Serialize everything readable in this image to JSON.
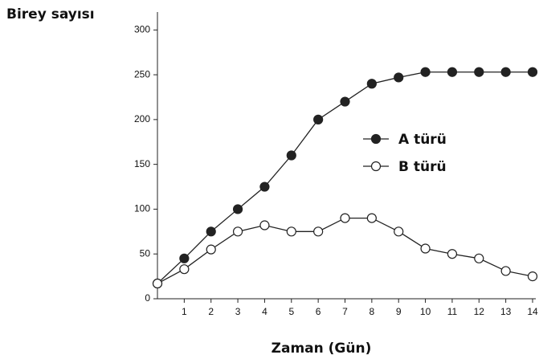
{
  "chart_data": {
    "type": "line",
    "y_label": "Birey sayısı",
    "x_label": "Zaman (Gün)",
    "x": [
      0,
      1,
      2,
      3,
      4,
      5,
      6,
      7,
      8,
      9,
      10,
      11,
      12,
      13,
      14
    ],
    "series": [
      {
        "name": "A türü",
        "color": "#222222",
        "marker_fill": "#222222",
        "values": [
          17,
          45,
          75,
          100,
          125,
          160,
          200,
          220,
          240,
          247,
          253,
          253,
          253,
          253,
          253
        ]
      },
      {
        "name": "B türü",
        "color": "#222222",
        "marker_fill": "#ffffff",
        "values": [
          17,
          33,
          55,
          75,
          82,
          75,
          75,
          90,
          90,
          75,
          56,
          50,
          45,
          31,
          25
        ]
      }
    ],
    "xlim": [
      0,
      14
    ],
    "xticks": [
      1,
      2,
      3,
      4,
      5,
      6,
      7,
      8,
      9,
      10,
      11,
      12,
      13,
      14
    ],
    "ylim": [
      0,
      320
    ],
    "yticks": [
      0,
      50,
      100,
      150,
      200,
      250,
      300
    ],
    "grid": false
  }
}
